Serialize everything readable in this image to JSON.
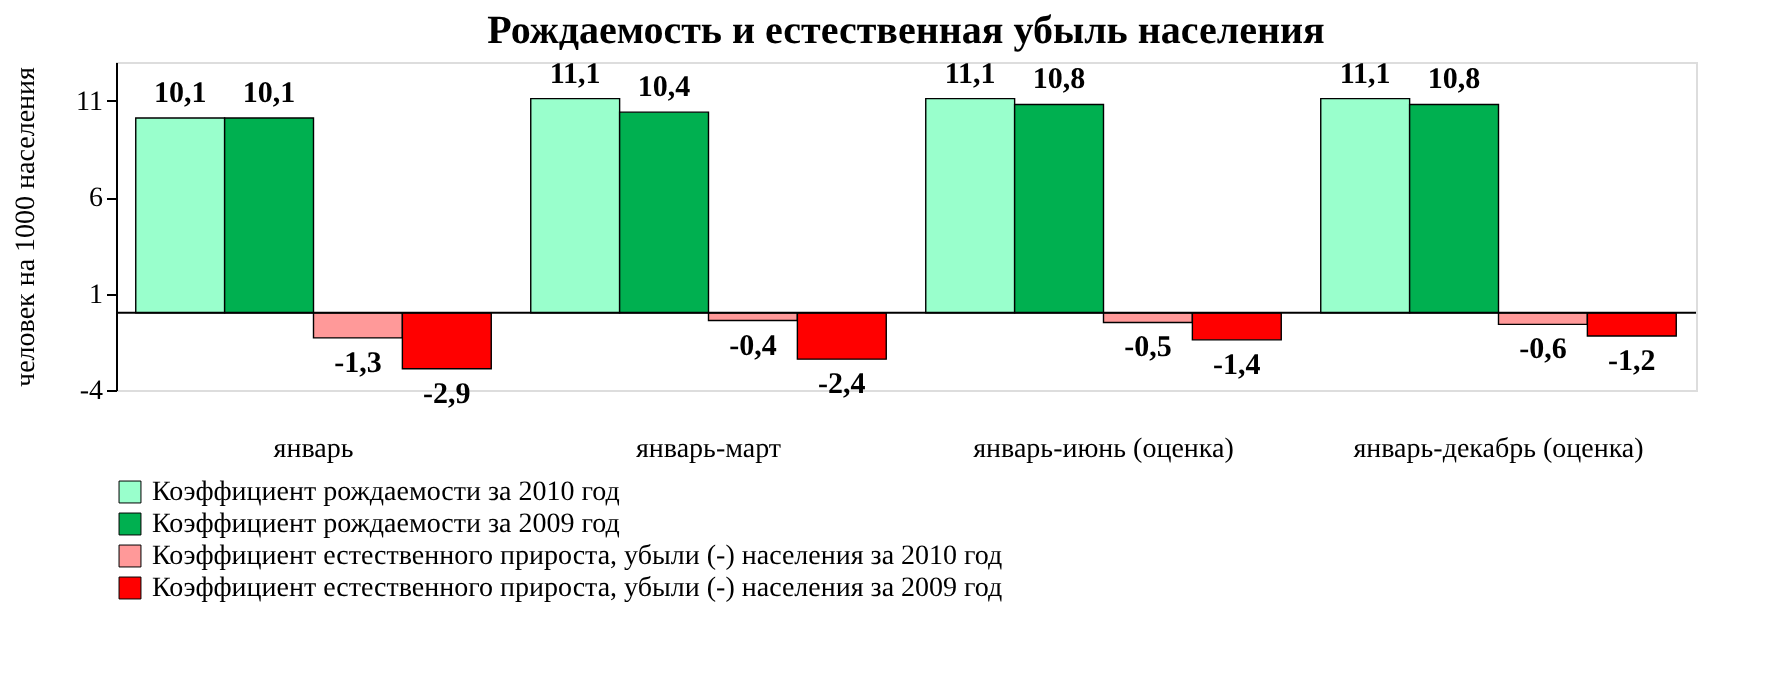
{
  "chart_data": {
    "type": "bar",
    "title": "Рождаемость и естественная убыль населения",
    "ylabel": "человек на 1000 населения",
    "categories": [
      "январь",
      "январь-март",
      "январь-июнь (оценка)",
      "январь-декабрь (оценка)"
    ],
    "series": [
      {
        "name": "Коэффициент рождаемости за 2010 год",
        "color": "#99ffcc",
        "values": [
          10.1,
          11.1,
          11.1,
          11.1
        ],
        "value_labels": [
          "10,1",
          "11,1",
          "11,1",
          "11,1"
        ]
      },
      {
        "name": "Коэффициент рождаемости за 2009 год",
        "color": "#00b050",
        "values": [
          10.1,
          10.4,
          10.8,
          10.8
        ],
        "value_labels": [
          "10,1",
          "10,4",
          "10,8",
          "10,8"
        ]
      },
      {
        "name": "Коэффициент естественного прироста, убыли (-) населения за 2010 год",
        "color": "#ff9999",
        "values": [
          -1.3,
          -0.4,
          -0.5,
          -0.6
        ],
        "value_labels": [
          "-1,3",
          "-0,4",
          "-0,5",
          "-0,6"
        ]
      },
      {
        "name": "Коэффициент естественного прироста, убыли (-) населения за 2009 год",
        "color": "#ff0000",
        "values": [
          -2.9,
          -2.4,
          -1.4,
          -1.2
        ],
        "value_labels": [
          "-2,9",
          "-2,4",
          "-1,4",
          "-1,2"
        ]
      }
    ],
    "ylim": [
      -4,
      13
    ],
    "yticks": [
      -4,
      1,
      6,
      11
    ],
    "grid": false,
    "legend": "bottom"
  }
}
